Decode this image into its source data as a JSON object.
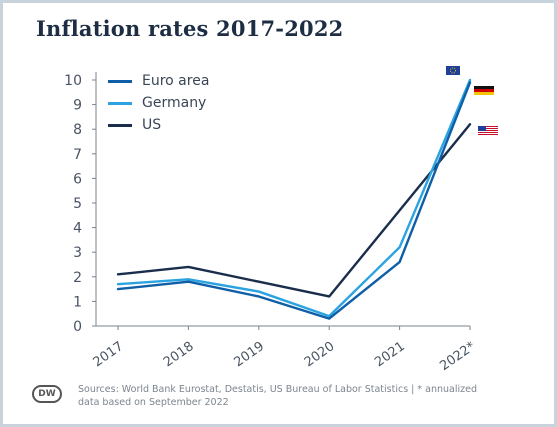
{
  "title": "Inflation rates 2017-2022",
  "source": "Sources: World Bank Eurostat, Destatis, US Bureau of Labor Statistics | * annualized data based on September 2022",
  "logo_text": "DW",
  "colors": {
    "Euro area": "#0e5ea8",
    "Germany": "#2ba3e0",
    "US": "#1a2e4c",
    "axis": "#7a838e",
    "tick_text": "#4a5563"
  },
  "flags": {
    "Euro area": "eu-flag-icon",
    "Germany": "germany-flag-icon",
    "US": "us-flag-icon"
  },
  "chart_data": {
    "type": "line",
    "x": [
      "2017",
      "2018",
      "2019",
      "2020",
      "2021",
      "2022*"
    ],
    "ylim": [
      0,
      10
    ],
    "yticks": [
      0,
      1,
      2,
      3,
      4,
      5,
      6,
      7,
      8,
      9,
      10
    ],
    "grid": false,
    "legend": "top-left",
    "series": [
      {
        "name": "Euro area",
        "values": [
          1.5,
          1.8,
          1.2,
          0.3,
          2.6,
          9.9
        ]
      },
      {
        "name": "Germany",
        "values": [
          1.7,
          1.9,
          1.4,
          0.4,
          3.2,
          10.0
        ]
      },
      {
        "name": "US",
        "values": [
          2.1,
          2.4,
          1.8,
          1.2,
          4.7,
          8.2
        ]
      }
    ]
  }
}
